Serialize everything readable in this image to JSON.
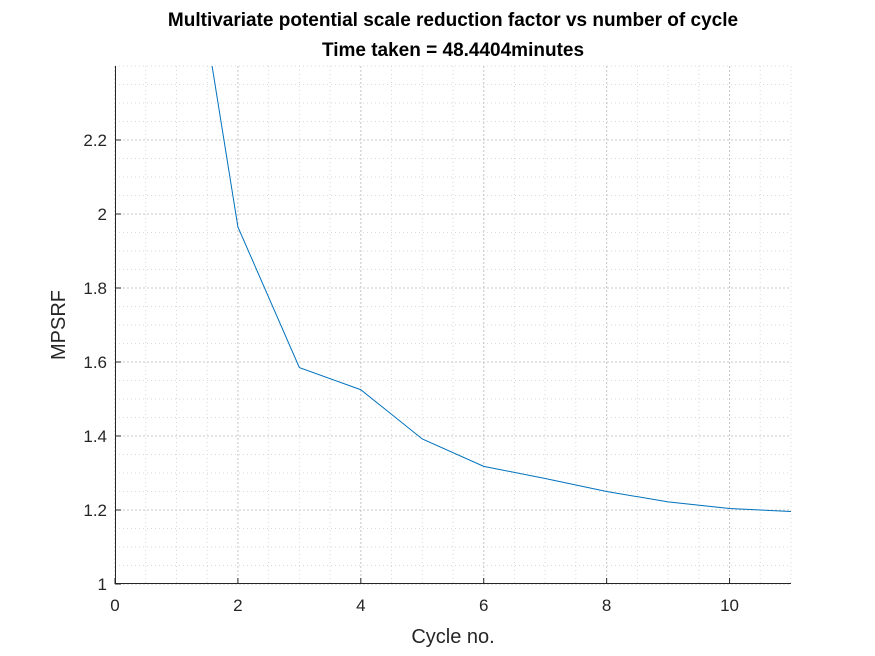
{
  "chart_data": {
    "type": "line",
    "title": "Multivariate potential scale reduction factor vs number of cycle",
    "subtitle": "Time taken = 48.4404minutes",
    "xlabel": "Cycle no.",
    "ylabel": "MPSRF",
    "xlim": [
      0,
      11
    ],
    "ylim": [
      1,
      2.4
    ],
    "xticks": [
      0,
      2,
      4,
      6,
      8,
      10
    ],
    "yticks": [
      1,
      1.2,
      1.4,
      1.6,
      1.8,
      2,
      2.2
    ],
    "xtick_labels": [
      "0",
      "2",
      "4",
      "6",
      "8",
      "10"
    ],
    "ytick_labels": [
      "1",
      "1.2",
      "1.4",
      "1.6",
      "1.8",
      "2",
      "2.2"
    ],
    "grid": true,
    "minor_grid": true,
    "series": [
      {
        "color": "#0072BD",
        "x": [
          1,
          2,
          3,
          4,
          5,
          6,
          7,
          8,
          9,
          10,
          11
        ],
        "y": [
          3.0,
          1.965,
          1.585,
          1.525,
          1.392,
          1.318,
          1.285,
          1.25,
          1.222,
          1.204,
          1.196
        ]
      }
    ]
  }
}
